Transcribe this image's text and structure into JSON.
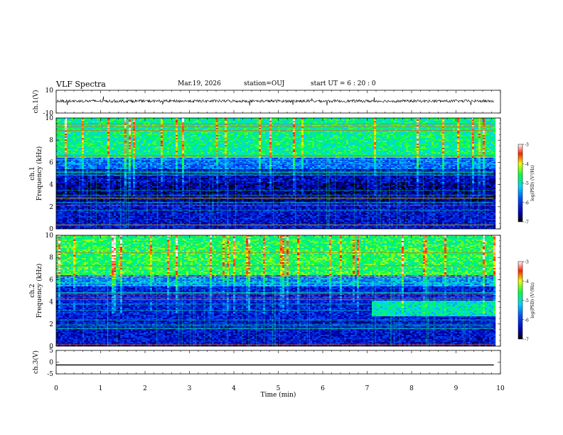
{
  "header": {
    "title": "VLF Spectra",
    "date": "Mar.19, 2026",
    "station": "station=OUJ",
    "start": "start  UT =   6 : 20 : 0"
  },
  "chart_data": [
    {
      "type": "line",
      "name": "ch1-waveform",
      "ylabel": "ch.1(V)",
      "ylim": [
        -10,
        10
      ],
      "yticks": [
        "10",
        "-10"
      ],
      "x_range_min": [
        0,
        9.85
      ],
      "baseline": 0.5,
      "noise_amplitude": 1.2
    },
    {
      "type": "heatmap",
      "name": "ch1-spectrogram",
      "ylabel": "ch.1\nFrequency (kHz)",
      "ylim": [
        0,
        10
      ],
      "yticks": [
        "0",
        "2",
        "4",
        "6",
        "8",
        "10"
      ],
      "colorbar": {
        "label": "log(PSD) (V²/Hz)",
        "range": [
          -7,
          -3
        ],
        "ticks": [
          "-3",
          "-4",
          "-5",
          "-6",
          "-7"
        ]
      },
      "bands_khz": [
        {
          "range": [
            0,
            2.5
          ],
          "level": -6.3
        },
        {
          "range": [
            2.5,
            4.2
          ],
          "level": -6.6
        },
        {
          "range": [
            4.2,
            5.5
          ],
          "level": -6.4
        },
        {
          "range": [
            5.5,
            6.5
          ],
          "level": -5.7
        },
        {
          "range": [
            6.5,
            10
          ],
          "level": -4.8
        }
      ]
    },
    {
      "type": "heatmap",
      "name": "ch2-spectrogram",
      "ylabel": "ch.2\nFrequency (kHz)",
      "ylim": [
        0,
        10
      ],
      "yticks": [
        "0",
        "2",
        "4",
        "6",
        "8",
        "10"
      ],
      "colorbar": {
        "label": "log(PSD) (V²/Hz)",
        "range": [
          -7,
          -3
        ],
        "ticks": [
          "-3",
          "-4",
          "-5",
          "-6",
          "-7"
        ]
      },
      "bands_khz": [
        {
          "range": [
            0,
            2.5
          ],
          "level": -6.3
        },
        {
          "range": [
            2.5,
            5.5
          ],
          "level": -6.2
        },
        {
          "range": [
            5.5,
            6.5
          ],
          "level": -5.5
        },
        {
          "range": [
            6.5,
            10
          ],
          "level": -4.6
        }
      ]
    },
    {
      "type": "line",
      "name": "ch3-waveform",
      "ylabel": "ch.3(V)",
      "ylim": [
        -5,
        5
      ],
      "yticks": [
        "5",
        "0",
        "-5"
      ],
      "x_range_min": [
        0,
        9.85
      ],
      "baseline": -1.2,
      "noise_amplitude": 0
    }
  ],
  "xaxis": {
    "label": "Time  (min)",
    "range": [
      0,
      10
    ],
    "ticks": [
      "0",
      "1",
      "2",
      "3",
      "4",
      "5",
      "6",
      "7",
      "8",
      "9",
      "10"
    ]
  }
}
